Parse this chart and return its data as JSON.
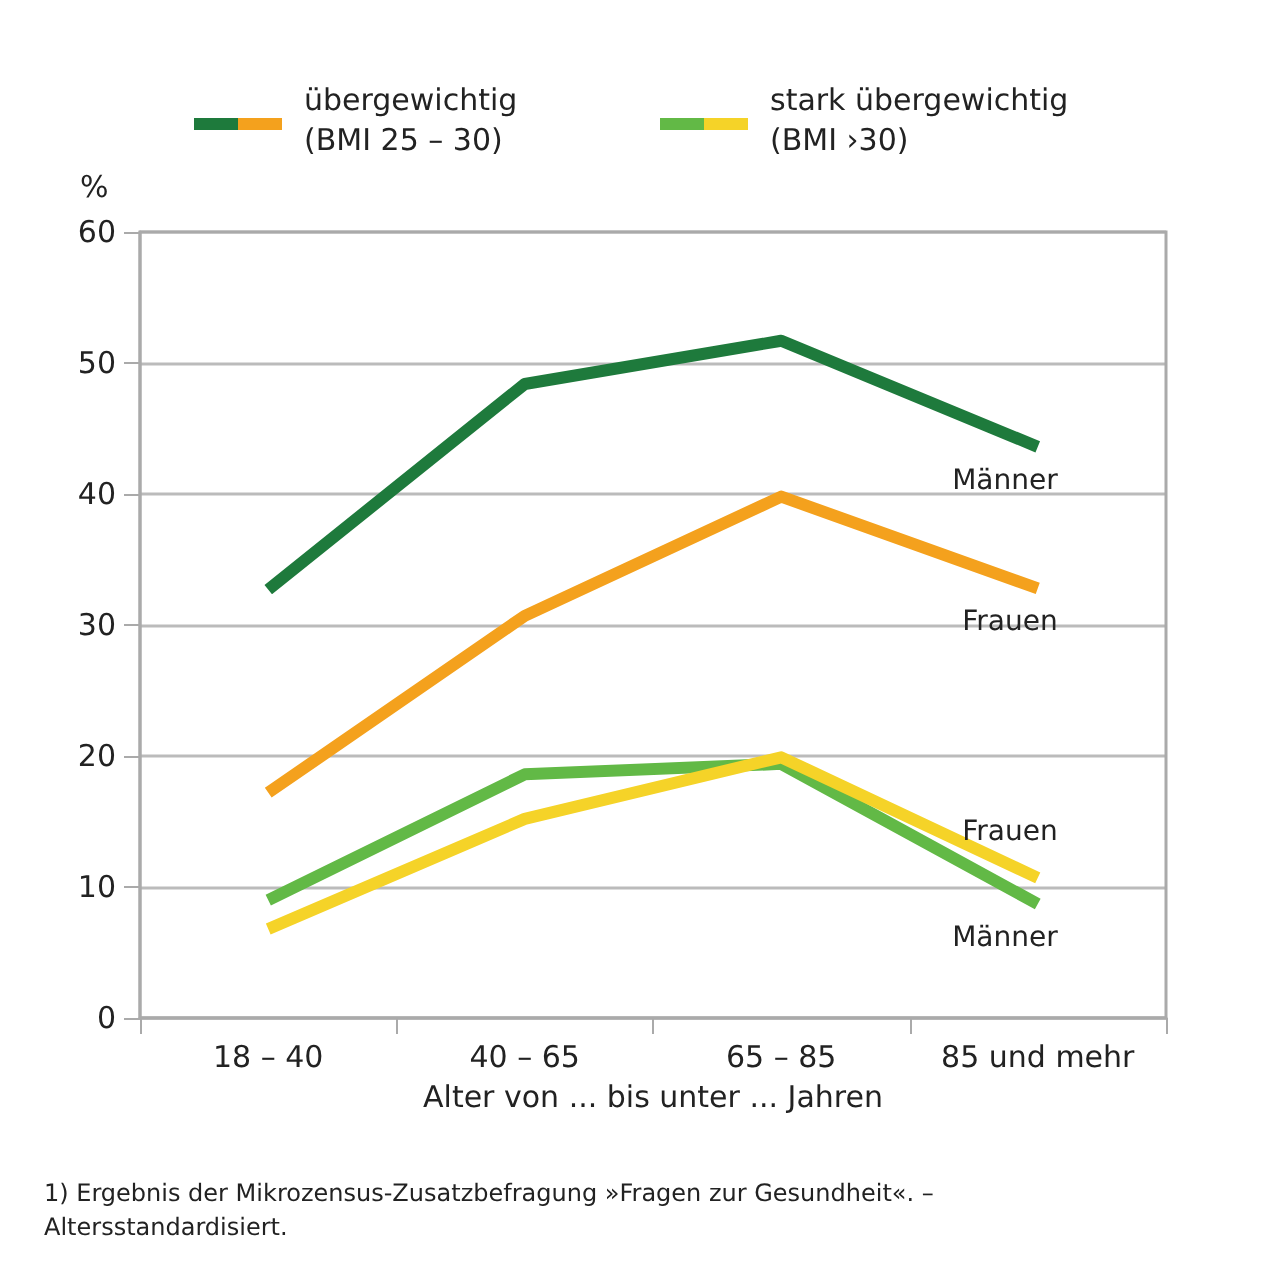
{
  "chart_data": {
    "type": "line",
    "categories": [
      "18 – 40",
      "40 – 65",
      "65 – 85",
      "85 und mehr"
    ],
    "series": [
      {
        "name": "Männer",
        "color": "#1e7a3c",
        "values": [
          32.7,
          48.4,
          51.7,
          43.6
        ]
      },
      {
        "name": "Frauen",
        "color": "#f4a11d",
        "values": [
          17.2,
          30.7,
          39.8,
          32.8
        ]
      },
      {
        "name": "Männer",
        "color": "#62b946",
        "values": [
          9.0,
          18.6,
          19.4,
          8.7
        ]
      },
      {
        "name": "Frauen",
        "color": "#f5d328",
        "values": [
          6.8,
          15.2,
          19.9,
          10.7
        ]
      }
    ],
    "ylabel": "%",
    "xlabel": "Alter von ... bis unter ... Jahren",
    "ylim": [
      0,
      60
    ],
    "yticks": [
      0,
      10,
      20,
      30,
      40,
      50,
      60
    ],
    "grid": "y",
    "marker": "none",
    "line_style": "solid",
    "annotations": [
      "übergewichtig\n(BMI 25 – 30)",
      "stark übergewichtig\n(BMI ›30)",
      "1) Ergebnis der Mikrozensus-Zusatzbefragung »Fragen zur Gesundheit«. –\nAltersstandardisiert."
    ]
  }
}
